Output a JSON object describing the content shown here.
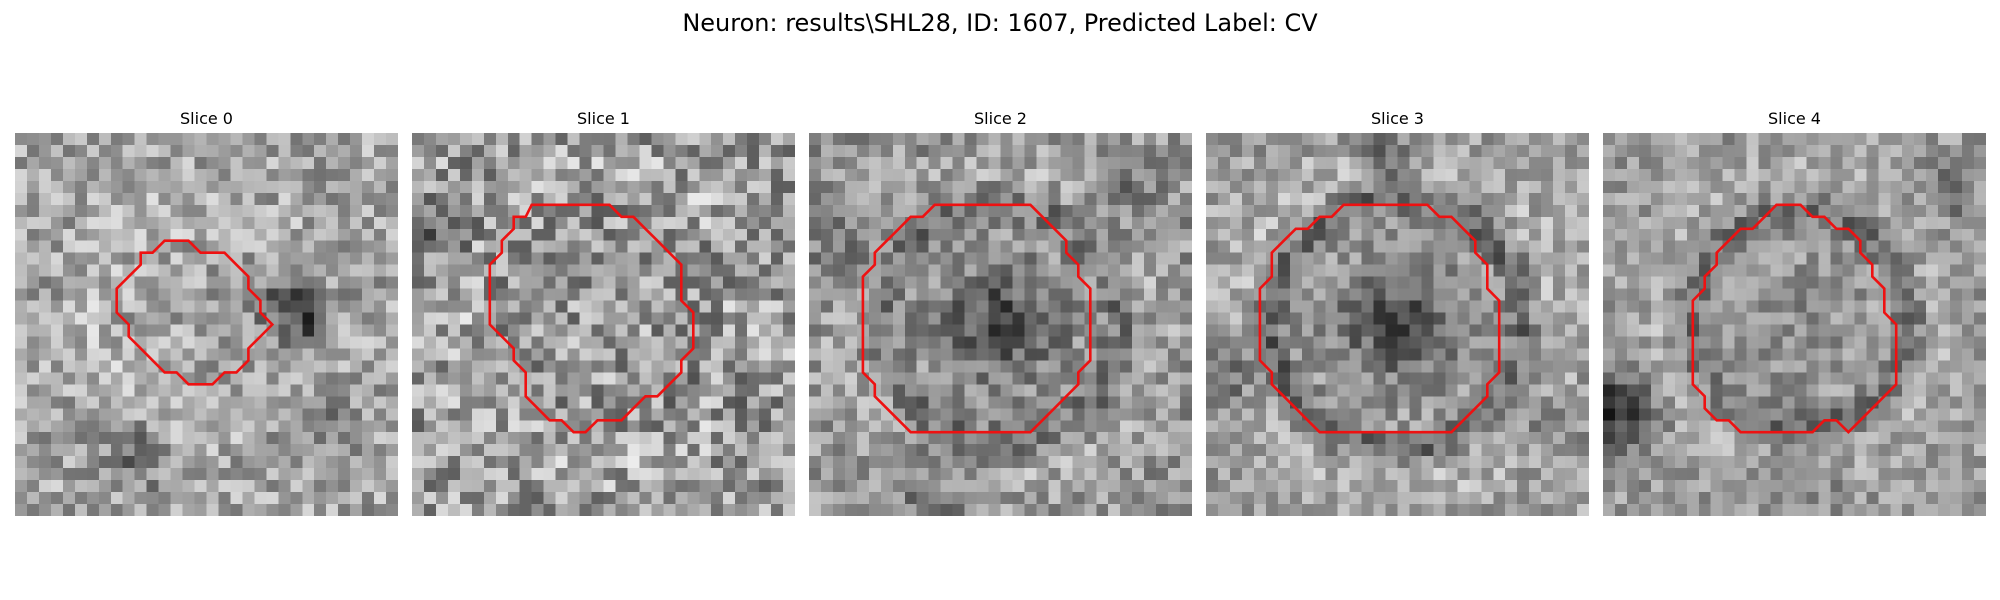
{
  "figure": {
    "title": "Neuron: results\\SHL28, ID: 1607, Predicted Label: CV"
  },
  "slices": [
    {
      "title": "Slice 0"
    },
    {
      "title": "Slice 1"
    },
    {
      "title": "Slice 2"
    },
    {
      "title": "Slice 3"
    },
    {
      "title": "Slice 4"
    }
  ],
  "colors": {
    "outline": "#ee1111",
    "background": "#ffffff"
  }
}
